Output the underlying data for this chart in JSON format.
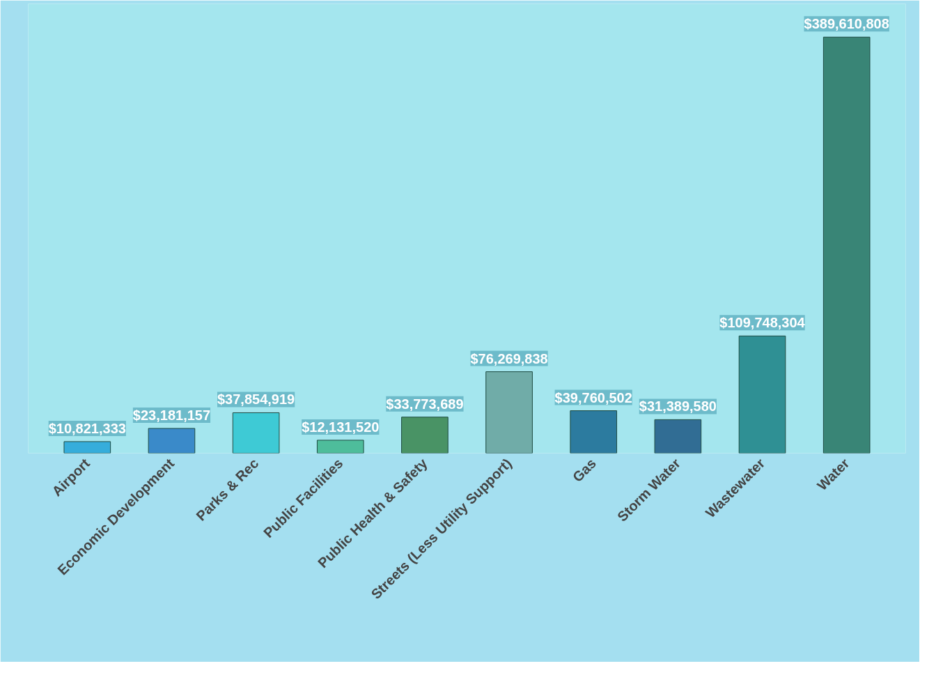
{
  "chart_data": {
    "type": "bar",
    "categories": [
      "Airport",
      "Economic Development",
      "Parks & Rec",
      "Public Facilities",
      "Public Health & Safety",
      "Streets (Less Utility Support)",
      "Gas",
      "Storm Water",
      "Wastewater",
      "Water"
    ],
    "values": [
      10821333,
      23181157,
      37854919,
      12131520,
      33773689,
      76269838,
      39760502,
      31389580,
      109748304,
      389610808
    ],
    "value_labels": [
      "$10,821,333",
      "$23,181,157",
      "$37,854,919",
      "$12,131,520",
      "$33,773,689",
      "$76,269,838",
      "$39,760,502",
      "$31,389,580",
      "$109,748,304",
      "$389,610,808"
    ],
    "colors": [
      "#2aa6d8",
      "#2f7fc4",
      "#33c7d1",
      "#45b891",
      "#3f8a55",
      "#6aa5a0",
      "#1f6f96",
      "#255f8a",
      "#22868a",
      "#2e7a68"
    ],
    "tick_labels": "x",
    "grid": false
  }
}
